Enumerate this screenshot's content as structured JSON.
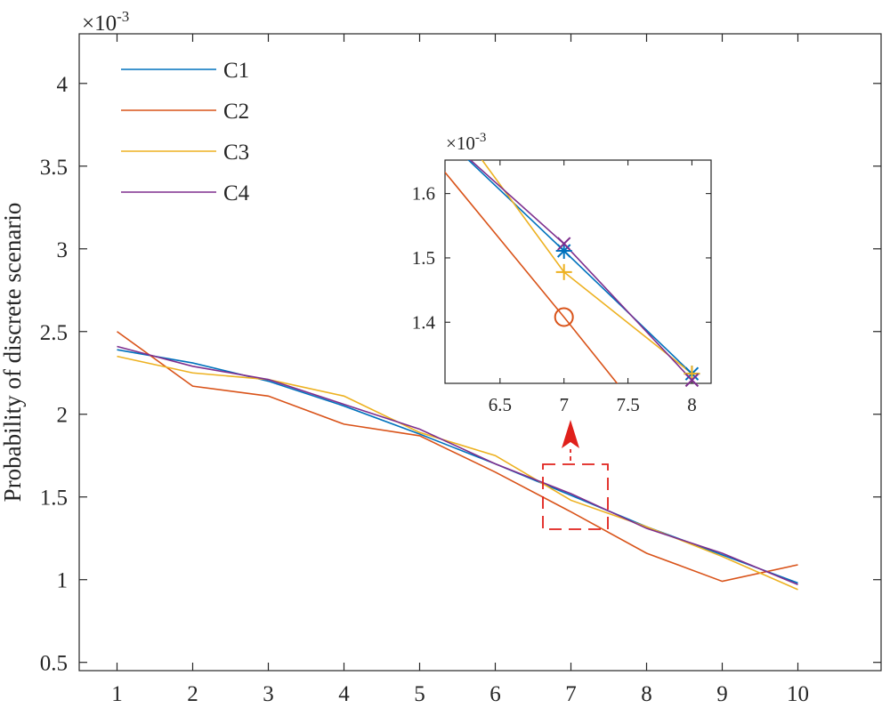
{
  "chart_data": [
    {
      "type": "line",
      "ylabel": "Probability of discrete scenario",
      "xlabel": "",
      "y_exponent_prefix": "×10",
      "y_exponent": "-3",
      "xlim": [
        0.5,
        11.1
      ],
      "ylim": [
        0.45,
        4.3
      ],
      "x_ticks": [
        1,
        2,
        3,
        4,
        5,
        6,
        7,
        8,
        9,
        10
      ],
      "x_tick_labels": [
        "1",
        "2",
        "3",
        "4",
        "5",
        "6",
        "7",
        "8",
        "9",
        "10"
      ],
      "y_ticks": [
        0.5,
        1,
        1.5,
        2,
        2.5,
        3,
        3.5,
        4
      ],
      "y_tick_labels": [
        "0.5",
        "1",
        "1.5",
        "2",
        "2.5",
        "3",
        "3.5",
        "4"
      ],
      "legend_position": "top-left",
      "x": [
        1,
        2,
        3,
        4,
        5,
        6,
        7,
        8,
        9,
        10
      ],
      "series": [
        {
          "name": "C1",
          "color": "#0072bd",
          "values": [
            2.39,
            2.31,
            2.2,
            2.05,
            1.88,
            1.7,
            1.51,
            1.32,
            1.15,
            0.98
          ]
        },
        {
          "name": "C2",
          "color": "#d95319",
          "values": [
            2.5,
            2.17,
            2.11,
            1.94,
            1.87,
            1.65,
            1.41,
            1.16,
            0.99,
            1.09
          ]
        },
        {
          "name": "C3",
          "color": "#edb120",
          "values": [
            2.35,
            2.25,
            2.21,
            2.11,
            1.89,
            1.75,
            1.48,
            1.32,
            1.14,
            0.94
          ]
        },
        {
          "name": "C4",
          "color": "#7e2f8e",
          "values": [
            2.41,
            2.29,
            2.21,
            2.06,
            1.91,
            1.7,
            1.52,
            1.31,
            1.16,
            0.97
          ]
        }
      ],
      "highlight_color": "#e0201b"
    },
    {
      "type": "line",
      "role": "inset",
      "y_exponent_prefix": "×10",
      "y_exponent": "-3",
      "xlim": [
        6.07,
        8.15
      ],
      "ylim": [
        1.305,
        1.652
      ],
      "x_ticks": [
        6.5,
        7,
        7.5,
        8
      ],
      "x_tick_labels": [
        "6.5",
        "7",
        "7.5",
        "8"
      ],
      "y_ticks": [
        1.4,
        1.5,
        1.6
      ],
      "y_tick_labels": [
        "1.4",
        "1.5",
        "1.6"
      ],
      "x": [
        6,
        7,
        8
      ],
      "series": [
        {
          "name": "C1",
          "color": "#0072bd",
          "marker": "asterisk",
          "values": [
            1.7,
            1.511,
            1.32
          ]
        },
        {
          "name": "C2",
          "color": "#d95319",
          "marker": "circle",
          "values": [
            1.65,
            1.408,
            1.16
          ]
        },
        {
          "name": "C3",
          "color": "#edb120",
          "marker": "plus",
          "values": [
            1.75,
            1.478,
            1.32
          ]
        },
        {
          "name": "C4",
          "color": "#7e2f8e",
          "marker": "cross",
          "values": [
            1.7,
            1.522,
            1.31
          ]
        }
      ]
    }
  ]
}
